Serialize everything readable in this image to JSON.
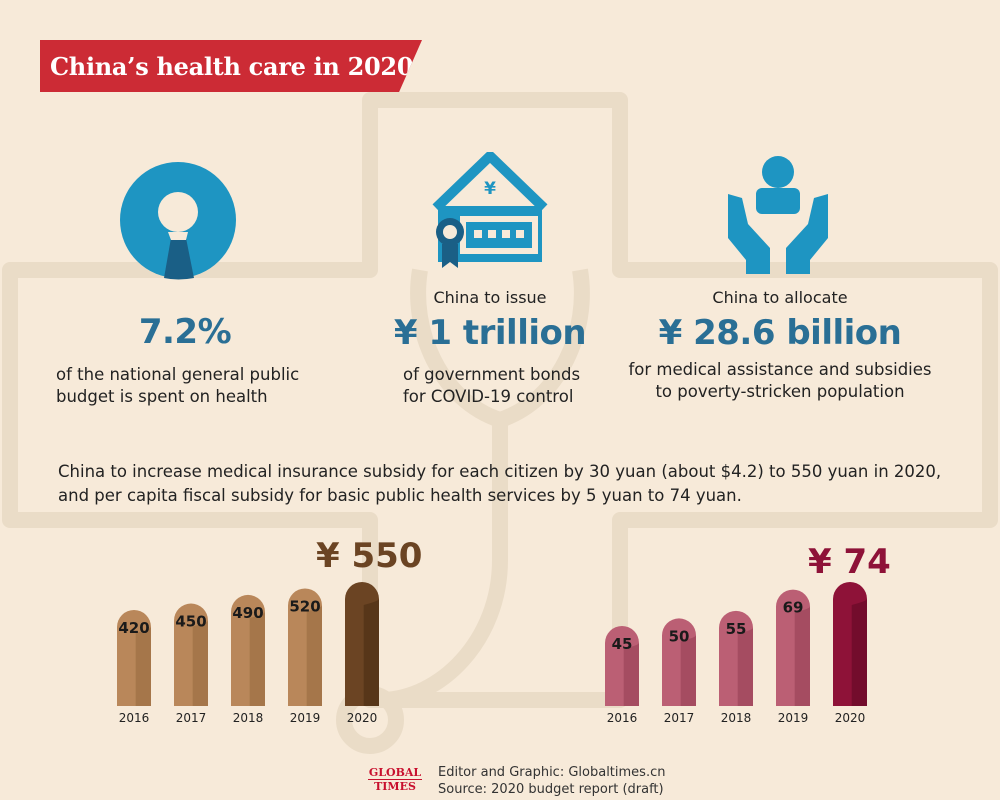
{
  "title": "China’s health care in 2020",
  "stats": {
    "percent": {
      "value": "7.2%",
      "desc1": "of the national general public",
      "desc2": "budget is spent on health",
      "fraction": 0.072
    },
    "bonds": {
      "pre": "China to issue",
      "value": "¥ 1 trillion",
      "desc1": "of government bonds",
      "desc2": "for COVID-19 control"
    },
    "allocate": {
      "pre": "China to allocate",
      "value": "¥ 28.6 billion",
      "desc1": "for medical assistance and subsidies",
      "desc2": "to poverty-stricken population"
    }
  },
  "note": {
    "line1": "China to increase medical insurance subsidy for each citizen by 30 yuan (about $4.2) to 550 yuan in 2020,",
    "line2": "and per capita fiscal subsidy for basic public health services by 5 yuan to 74 yuan."
  },
  "icons": {
    "pie": "pie-chart-icon",
    "bond": "yuan-bond-icon",
    "care": "hands-care-icon"
  },
  "chart_data": [
    {
      "type": "bar",
      "categories": [
        "2016",
        "2017",
        "2018",
        "2019",
        "2020"
      ],
      "values": [
        420,
        450,
        490,
        520,
        550
      ],
      "highlight_label": "¥ 550",
      "colors": {
        "bar": "#b9875a",
        "shade": "#a5764a",
        "last": "#6b4423",
        "last_shade": "#573619"
      }
    },
    {
      "type": "bar",
      "categories": [
        "2016",
        "2017",
        "2018",
        "2019",
        "2020"
      ],
      "values": [
        45,
        50,
        55,
        69,
        74
      ],
      "highlight_label": "¥ 74",
      "colors": {
        "bar": "#bb5f74",
        "shade": "#a54c61",
        "last": "#8e1238",
        "last_shade": "#730c2c"
      }
    }
  ],
  "credit": {
    "line1": "Editor and Graphic: Globaltimes.cn",
    "line2": "Source: 2020 budget report (draft)"
  },
  "logo": {
    "line1": "GLOBAL",
    "line2": "TIMES"
  }
}
